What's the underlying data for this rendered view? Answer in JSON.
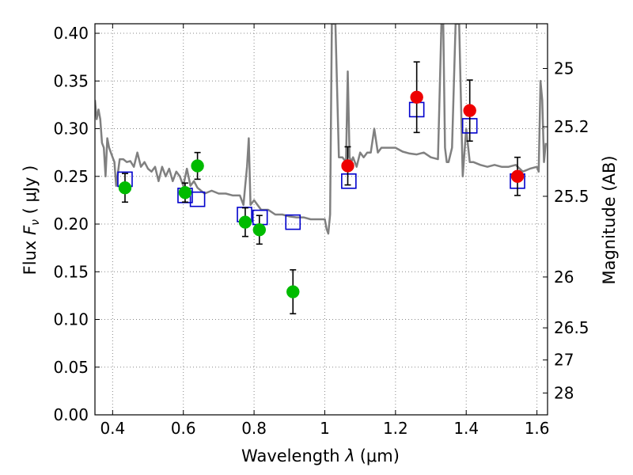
{
  "chart_data": {
    "type": "scatter",
    "xlabel_main": "Wavelength  ",
    "xlabel_lambda": "λ",
    "xlabel_unit": "(μm)",
    "ylabel_main": "Flux  ",
    "ylabel_f": "F",
    "ylabel_sub": "ν",
    "ylabel_unit": " ( μJy )",
    "y2label": "Magnitude (AB)",
    "xlim": [
      0.35,
      1.63
    ],
    "ylim": [
      0.0,
      0.41
    ],
    "grid": true,
    "xticks": [
      0.4,
      0.6,
      0.8,
      1.0,
      1.2,
      1.4,
      1.6
    ],
    "xtick_labels": [
      "0.4",
      "0.6",
      "0.8",
      "1",
      "1.2",
      "1.4",
      "1.6"
    ],
    "yticks": [
      0.0,
      0.05,
      0.1,
      0.15,
      0.2,
      0.25,
      0.3,
      0.35,
      0.4
    ],
    "ytick_labels": [
      "0.00",
      "0.05",
      "0.10",
      "0.15",
      "0.20",
      "0.25",
      "0.30",
      "0.35",
      "0.40"
    ],
    "y2ticks": [
      {
        "flux": 0.3631,
        "label": "25"
      },
      {
        "flux": 0.302,
        "label": "25.2"
      },
      {
        "flux": 0.2291,
        "label": "25.5"
      },
      {
        "flux": 0.1445,
        "label": "26"
      },
      {
        "flux": 0.0912,
        "label": "26.5"
      },
      {
        "flux": 0.0575,
        "label": "27"
      },
      {
        "flux": 0.0229,
        "label": "28"
      }
    ],
    "colors": {
      "model": "#808080",
      "model_squares": "#0000cc",
      "optical": "#00bb00",
      "nir": "#ee0000",
      "grid": "#888888"
    },
    "series": [
      {
        "kind": "spectrum",
        "x": [
          0.35,
          0.355,
          0.36,
          0.365,
          0.37,
          0.375,
          0.38,
          0.385,
          0.39,
          0.395,
          0.4,
          0.405,
          0.41,
          0.42,
          0.43,
          0.44,
          0.45,
          0.46,
          0.47,
          0.48,
          0.49,
          0.5,
          0.51,
          0.52,
          0.53,
          0.54,
          0.55,
          0.56,
          0.57,
          0.58,
          0.59,
          0.6,
          0.61,
          0.62,
          0.63,
          0.64,
          0.65,
          0.66,
          0.68,
          0.7,
          0.72,
          0.74,
          0.75,
          0.76,
          0.77,
          0.775,
          0.78,
          0.785,
          0.79,
          0.8,
          0.82,
          0.84,
          0.86,
          0.88,
          0.9,
          0.92,
          0.94,
          0.96,
          0.98,
          1.0,
          1.005,
          1.01,
          1.015,
          1.02,
          1.025,
          1.03,
          1.04,
          1.05,
          1.06,
          1.065,
          1.07,
          1.075,
          1.08,
          1.09,
          1.1,
          1.11,
          1.12,
          1.13,
          1.14,
          1.15,
          1.16,
          1.17,
          1.18,
          1.19,
          1.2,
          1.22,
          1.24,
          1.26,
          1.28,
          1.3,
          1.32,
          1.33,
          1.335,
          1.34,
          1.345,
          1.35,
          1.36,
          1.37,
          1.38,
          1.39,
          1.4,
          1.41,
          1.42,
          1.44,
          1.46,
          1.48,
          1.5,
          1.52,
          1.54,
          1.56,
          1.58,
          1.6,
          1.605,
          1.61,
          1.615,
          1.62,
          1.625
        ],
        "y": [
          0.33,
          0.31,
          0.32,
          0.31,
          0.285,
          0.28,
          0.25,
          0.29,
          0.28,
          0.275,
          0.27,
          0.265,
          0.24,
          0.268,
          0.268,
          0.265,
          0.266,
          0.26,
          0.275,
          0.26,
          0.265,
          0.258,
          0.255,
          0.26,
          0.245,
          0.26,
          0.25,
          0.258,
          0.245,
          0.255,
          0.25,
          0.24,
          0.258,
          0.24,
          0.245,
          0.238,
          0.235,
          0.232,
          0.235,
          0.232,
          0.232,
          0.23,
          0.23,
          0.23,
          0.22,
          0.24,
          0.26,
          0.29,
          0.22,
          0.225,
          0.215,
          0.215,
          0.21,
          0.21,
          0.208,
          0.207,
          0.207,
          0.205,
          0.205,
          0.205,
          0.195,
          0.19,
          0.21,
          0.41,
          0.41,
          0.41,
          0.27,
          0.27,
          0.265,
          0.36,
          0.27,
          0.265,
          0.27,
          0.26,
          0.275,
          0.27,
          0.275,
          0.275,
          0.3,
          0.275,
          0.28,
          0.28,
          0.28,
          0.28,
          0.28,
          0.276,
          0.274,
          0.273,
          0.275,
          0.27,
          0.268,
          0.41,
          0.41,
          0.28,
          0.265,
          0.265,
          0.28,
          0.41,
          0.41,
          0.25,
          0.3,
          0.265,
          0.265,
          0.262,
          0.26,
          0.262,
          0.26,
          0.26,
          0.262,
          0.255,
          0.258,
          0.26,
          0.255,
          0.35,
          0.33,
          0.265,
          0.285
        ]
      },
      {
        "kind": "squares",
        "x": [
          0.435,
          0.605,
          0.64,
          0.773,
          0.817,
          0.91,
          1.068,
          1.26,
          1.41,
          1.545
        ],
        "y": [
          0.247,
          0.23,
          0.226,
          0.21,
          0.207,
          0.202,
          0.245,
          0.32,
          0.303,
          0.245
        ]
      },
      {
        "kind": "points",
        "group": "optical",
        "x": [
          0.435,
          0.605,
          0.64,
          0.775,
          0.815,
          0.91
        ],
        "y": [
          0.238,
          0.233,
          0.261,
          0.202,
          0.194,
          0.129
        ],
        "err": [
          0.015,
          0.01,
          0.014,
          0.015,
          0.015,
          0.023
        ]
      },
      {
        "kind": "points",
        "group": "nir",
        "x": [
          1.065,
          1.26,
          1.41,
          1.545
        ],
        "y": [
          0.261,
          0.333,
          0.319,
          0.25
        ],
        "err": [
          0.02,
          0.037,
          0.032,
          0.02
        ]
      }
    ]
  }
}
